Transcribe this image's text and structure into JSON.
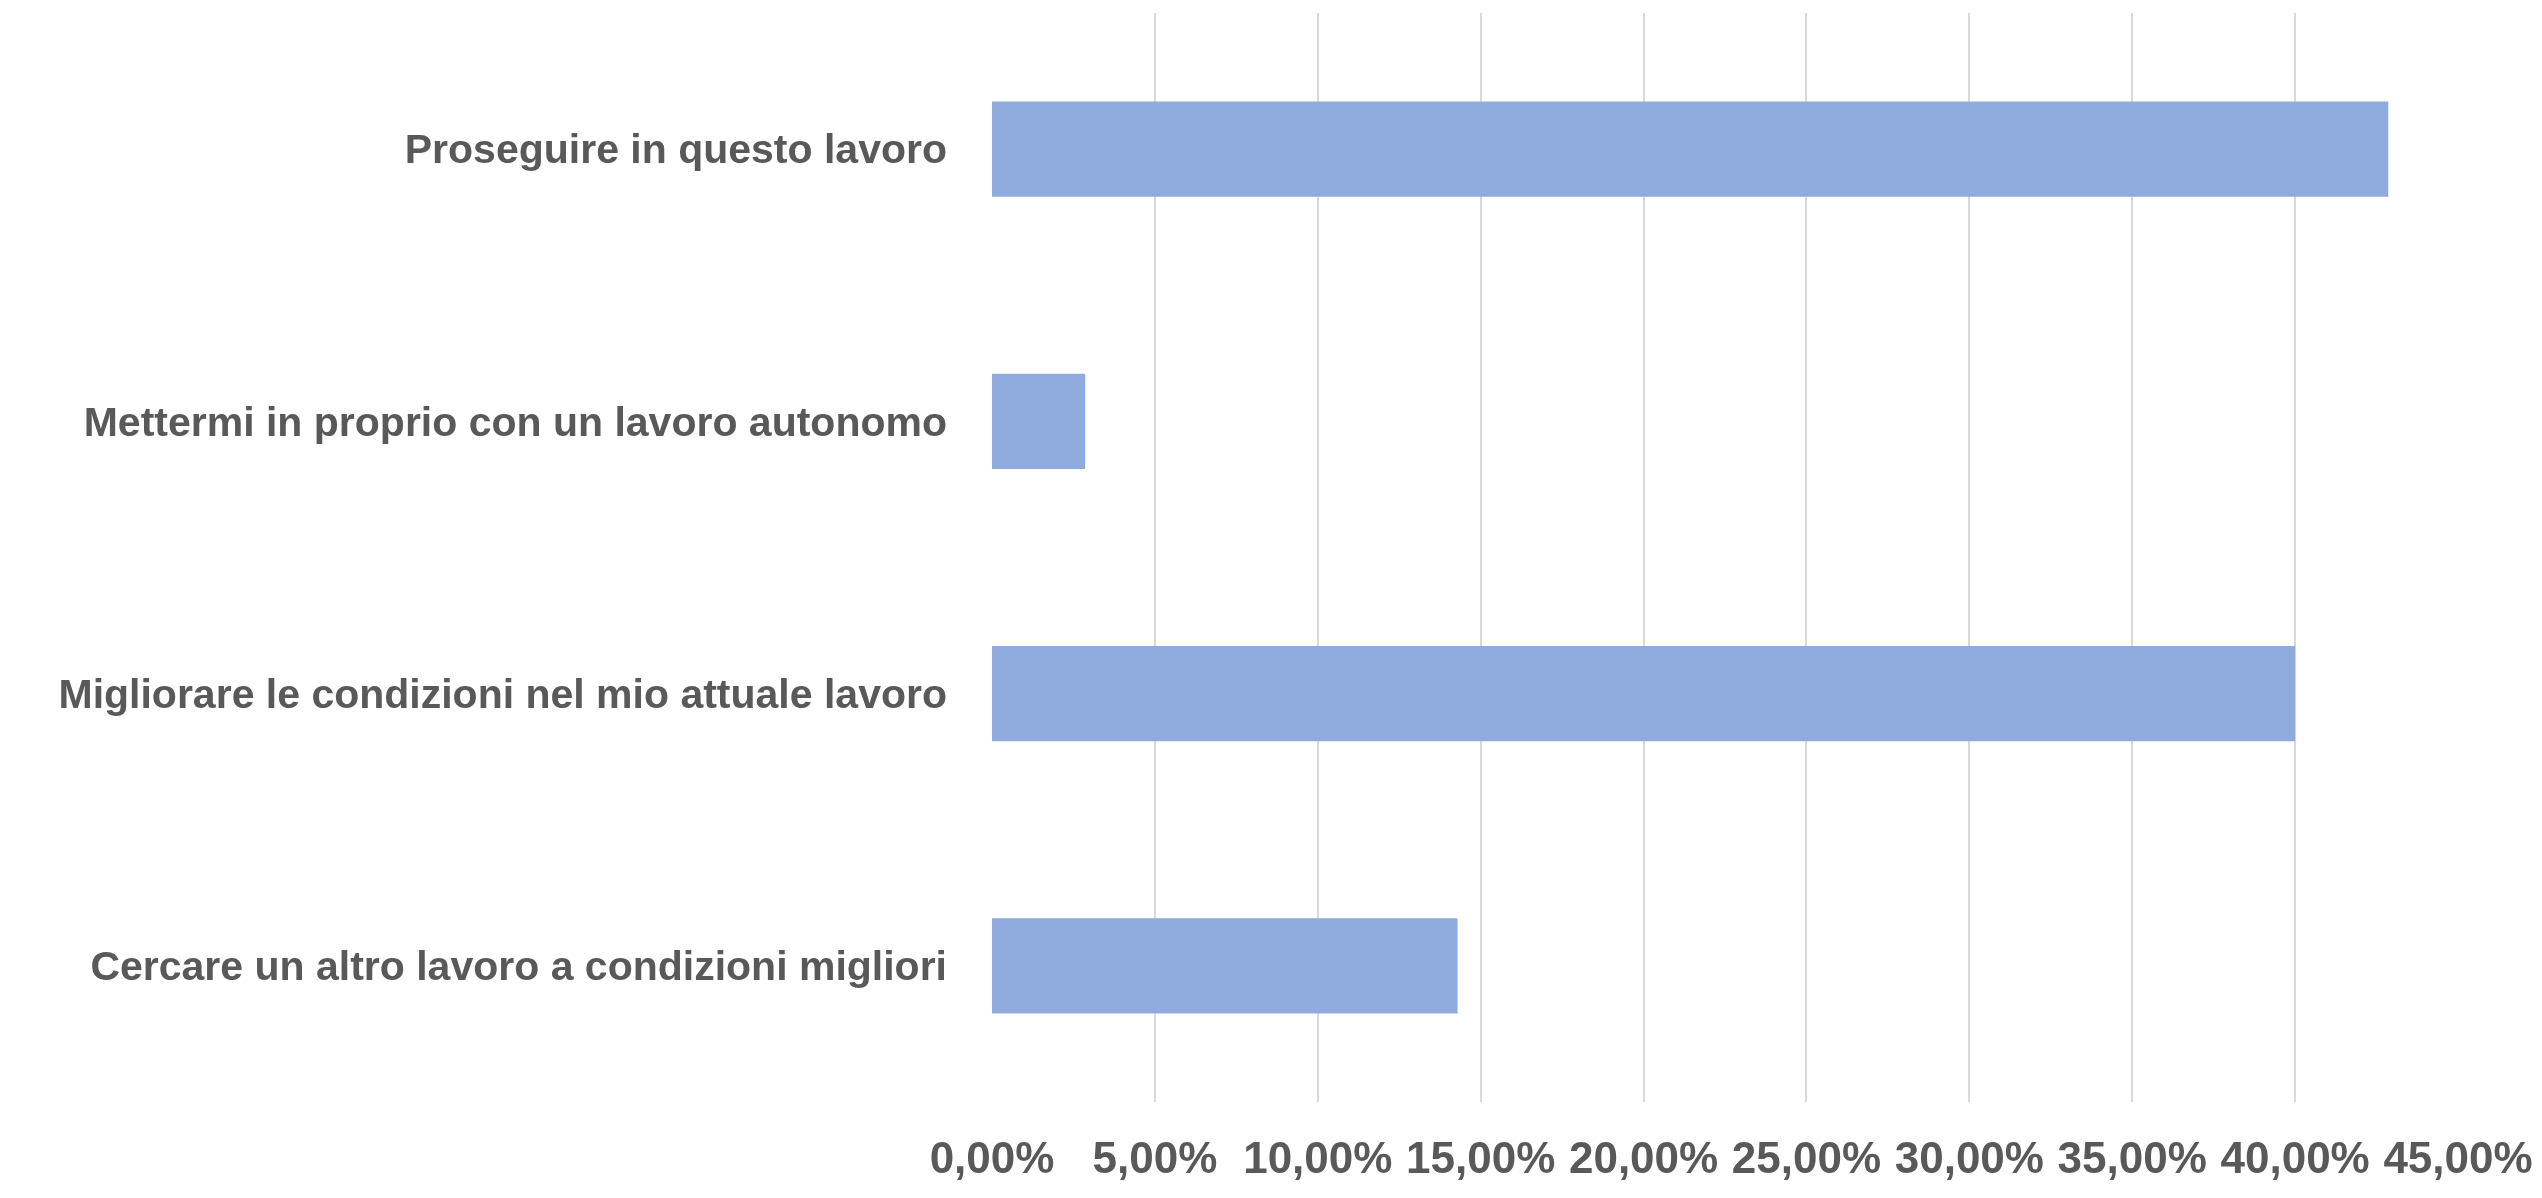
{
  "chart_data": {
    "type": "bar",
    "orientation": "horizontal",
    "categories": [
      "Proseguire in questo lavoro",
      "Mettermi in proprio con un lavoro autonomo",
      "Migliorare le condizioni nel mio attuale lavoro",
      "Cercare un altro lavoro a condizioni migliori"
    ],
    "values": [
      42.86,
      2.86,
      40.0,
      14.29
    ],
    "color": "#8faadc",
    "xlim": [
      0,
      45
    ],
    "xticks": [
      {
        "value": 0,
        "label": "0,00%"
      },
      {
        "value": 5,
        "label": "5,00%"
      },
      {
        "value": 10,
        "label": "10,00%"
      },
      {
        "value": 15,
        "label": "15,00%"
      },
      {
        "value": 20,
        "label": "20,00%"
      },
      {
        "value": 25,
        "label": "25,00%"
      },
      {
        "value": 30,
        "label": "30,00%"
      },
      {
        "value": 35,
        "label": "35,00%"
      },
      {
        "value": 40,
        "label": "40,00%"
      },
      {
        "value": 45,
        "label": "45,00%"
      }
    ],
    "grid": "x"
  }
}
